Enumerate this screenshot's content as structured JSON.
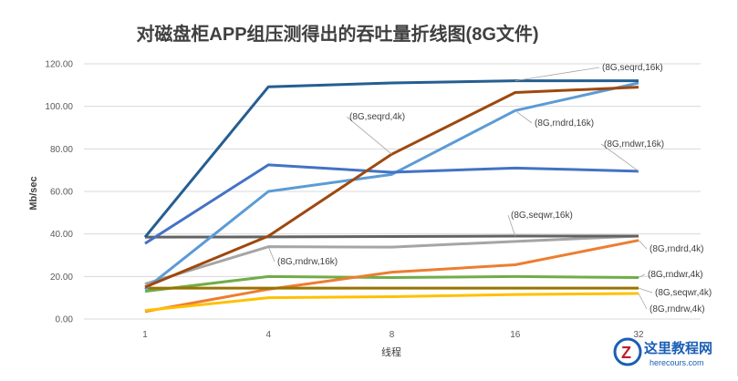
{
  "chart_data": {
    "type": "line",
    "title": "对磁盘柜APP组压测得出的吞吐量折线图(8G文件)",
    "xlabel": "线程",
    "ylabel": "Mb/sec",
    "categories": [
      "1",
      "4",
      "8",
      "16",
      "32"
    ],
    "ylim": [
      0,
      120
    ],
    "yticks": [
      "0.00",
      "20.00",
      "40.00",
      "60.00",
      "80.00",
      "100.00",
      "120.00"
    ],
    "grid": true,
    "legend": "none (data labels at series)",
    "series": [
      {
        "name": "(8G,seqrd,16k)",
        "color": "#255E91",
        "values": [
          38.5,
          109.2,
          111,
          112,
          112
        ]
      },
      {
        "name": "(8G,rndwr,16k)",
        "color": "#4472C4",
        "values": [
          35.5,
          72.5,
          69,
          71,
          69.5
        ]
      },
      {
        "name": "(8G,rndrd,16k)",
        "color": "#5B9BD5",
        "values": [
          14,
          60,
          68,
          98,
          111
        ]
      },
      {
        "name": "(8G,seqrd,4k)",
        "color": "#9E480E",
        "values": [
          15,
          39,
          77.5,
          106.5,
          109
        ]
      },
      {
        "name": "(8G,seqwr,16k)",
        "color": "#636363",
        "values": [
          38.5,
          38.6,
          38.8,
          39,
          39
        ]
      },
      {
        "name": "(8G,rndrw,16k)",
        "color": "#A5A5A5",
        "values": [
          16.5,
          34,
          33.8,
          36.5,
          39
        ]
      },
      {
        "name": "(8G,rndrd,4k)",
        "color": "#ED7D31",
        "values": [
          3.5,
          14,
          22,
          25.5,
          37
        ]
      },
      {
        "name": "(8G,rndwr,4k)",
        "color": "#70AD47",
        "values": [
          13,
          20,
          19.5,
          20,
          19.5
        ]
      },
      {
        "name": "(8G,seqwr,4k)",
        "color": "#997300",
        "values": [
          14.5,
          14.5,
          14.5,
          14.5,
          14.5
        ]
      },
      {
        "name": "(8G,rndrw,4k)",
        "color": "#FFC000",
        "values": [
          4,
          10,
          10.5,
          11.5,
          12
        ]
      }
    ]
  },
  "watermark": {
    "name": "这里教程网",
    "url": "herecours.com"
  }
}
